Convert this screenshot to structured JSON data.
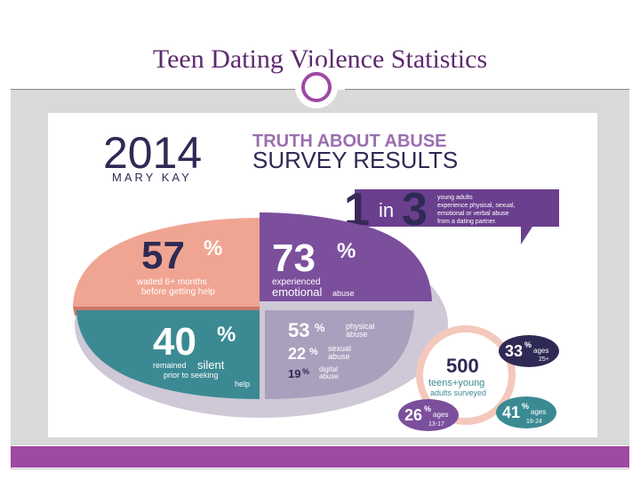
{
  "slide": {
    "title": "Teen Dating Violence Statistics"
  },
  "infographic": {
    "year": "2014",
    "brand": "MARY KAY",
    "headline_line1": "TRUTH ABOUT ABUSE",
    "headline_line2": "SURVEY RESULTS",
    "callout": {
      "prefix": "in",
      "number": "3",
      "one": "1",
      "text_line1": "young adults",
      "text_line2": "experience physical, sexual,",
      "text_line3": "emotional or verbal abuse",
      "text_line4": "from a dating partner."
    },
    "stat_57": {
      "value": "57",
      "unit": "%",
      "line1": "waited 6+ months",
      "line2": "before getting help"
    },
    "stat_73": {
      "value": "73",
      "unit": "%",
      "line1": "experienced",
      "line2a": "emotional",
      "line2b": "abuse"
    },
    "stat_40": {
      "value": "40",
      "unit": "%",
      "line1a": "remained",
      "line1b": "silent",
      "line2": "prior to seeking",
      "line3": "help"
    },
    "stat_53": {
      "value": "53",
      "unit": "%",
      "line1": "physical",
      "line2": "abuse"
    },
    "stat_22": {
      "value": "22",
      "unit": "%",
      "line1": "sexual",
      "line2": "abuse"
    },
    "stat_19": {
      "value": "19",
      "unit": "%",
      "line1": "digital",
      "line2": "abuse"
    },
    "survey": {
      "count": "500",
      "line1": "teens+young",
      "line2": "adults surveyed"
    },
    "age_33": {
      "value": "33",
      "unit": "%",
      "label": "ages",
      "range": "25+"
    },
    "age_26": {
      "value": "26",
      "unit": "%",
      "label": "ages",
      "range": "13-17"
    },
    "age_41": {
      "value": "41",
      "unit": "%",
      "label": "ages",
      "range": "18-24"
    }
  },
  "colors": {
    "accent": "#9e4aa2",
    "title": "#5e2a6e",
    "pink": "#f0a592",
    "purple": "#7b4f9c",
    "teal": "#3b8a93",
    "lavender": "#a9a0bd",
    "navy": "#2e2a55"
  }
}
